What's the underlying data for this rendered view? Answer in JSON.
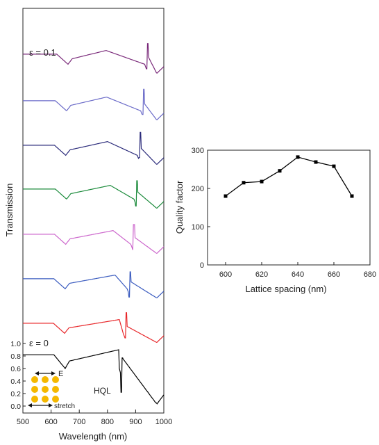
{
  "chart_data": [
    {
      "type": "line",
      "xlabel": "Wavelength (nm)",
      "ylabel": "Transmission",
      "xlim": [
        500,
        1000
      ],
      "x_ticks": [
        "500",
        "600",
        "700",
        "800",
        "900",
        "1000"
      ],
      "y_ticks": [
        "0.0",
        "0.2",
        "0.4",
        "0.6",
        "0.8",
        "1.0"
      ],
      "top_label": "ε = 0.1",
      "bottom_label": "ε = 0",
      "mode_label": "HQL",
      "polarization_label": "E",
      "stretch_label": "stretch",
      "series": [
        {
          "color": "#000000",
          "dip1": 650,
          "peak": 840,
          "res": 848,
          "ymin": 0.22,
          "ymax": 0.85
        },
        {
          "color": "#e8272a",
          "dip1": 648,
          "peak": 842,
          "res": 862,
          "ymin": 0.5,
          "ymax": 0.86
        },
        {
          "color": "#3a5bbf",
          "dip1": 650,
          "peak": 827,
          "res": 876,
          "ymin": 0.42,
          "ymax": 0.85
        },
        {
          "color": "#cc66cc",
          "dip1": 652,
          "peak": 820,
          "res": 889,
          "ymin": 0.48,
          "ymax": 0.85
        },
        {
          "color": "#1a8a3a",
          "dip1": 655,
          "peak": 810,
          "res": 900,
          "ymin": 0.45,
          "ymax": 0.85
        },
        {
          "color": "#2a2a7a",
          "dip1": 652,
          "peak": 800,
          "res": 912,
          "ymin": 0.55,
          "ymax": 0.84
        },
        {
          "color": "#6a6ac8",
          "dip1": 655,
          "peak": 797,
          "res": 924,
          "ymin": 0.52,
          "ymax": 0.84
        },
        {
          "color": "#7a2a7a",
          "dip1": 660,
          "peak": 795,
          "res": 938,
          "ymin": 0.5,
          "ymax": 0.83
        }
      ]
    },
    {
      "type": "line",
      "xlabel": "Lattice spacing (nm)",
      "ylabel": "Quality factor",
      "xlim": [
        590,
        680
      ],
      "ylim": [
        0,
        300
      ],
      "x_ticks": [
        "600",
        "620",
        "640",
        "660",
        "680"
      ],
      "y_ticks": [
        "0",
        "100",
        "200",
        "300"
      ],
      "x": [
        600,
        610,
        620,
        630,
        640,
        650,
        660,
        670
      ],
      "values": [
        180,
        215,
        218,
        246,
        282,
        269,
        258,
        180
      ]
    }
  ]
}
